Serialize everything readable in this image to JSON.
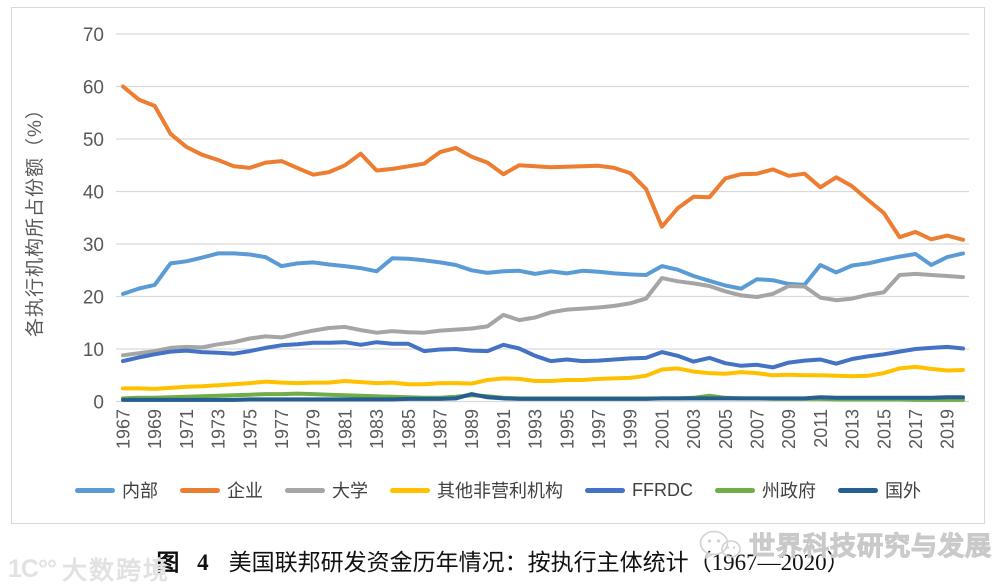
{
  "caption": {
    "prefix": "图 4",
    "text": "美国联邦研发资金历年情况：按执行主体统计（1967—2020）"
  },
  "watermark_left": {
    "logo_text": "1C°°",
    "text": "大数跨境"
  },
  "watermark_right": {
    "text": "世界科技研究与发展"
  },
  "colors": {
    "grid": "#D9D9D9",
    "frame_border": "#D9D9D9",
    "tick_text": "#595959",
    "legend_text": "#404040",
    "watermark": "#E2E2E2"
  },
  "chart_data": {
    "type": "line",
    "title": "",
    "xlabel": "",
    "ylabel": "各执行机构所占份额（%）",
    "ylim": [
      0,
      70
    ],
    "yticks": [
      0,
      10,
      20,
      30,
      40,
      50,
      60,
      70
    ],
    "grid": "horizontal",
    "legend_position": "bottom",
    "x": [
      1967,
      1968,
      1969,
      1970,
      1971,
      1972,
      1973,
      1974,
      1975,
      1976,
      1977,
      1978,
      1979,
      1980,
      1981,
      1982,
      1983,
      1984,
      1985,
      1986,
      1987,
      1988,
      1989,
      1990,
      1991,
      1992,
      1993,
      1994,
      1995,
      1996,
      1997,
      1998,
      1999,
      2000,
      2001,
      2002,
      2003,
      2004,
      2005,
      2006,
      2007,
      2008,
      2009,
      2010,
      2011,
      2012,
      2013,
      2014,
      2015,
      2016,
      2017,
      2018,
      2019,
      2020
    ],
    "xtick_labels": [
      "1967",
      "1969",
      "1971",
      "1973",
      "1975",
      "1977",
      "1979",
      "1981",
      "1983",
      "1985",
      "1987",
      "1989",
      "1991",
      "1993",
      "1995",
      "1997",
      "1999",
      "2001",
      "2003",
      "2005",
      "2007",
      "2009",
      "2011",
      "2013",
      "2015",
      "2017",
      "2019"
    ],
    "series": [
      {
        "name": "内部",
        "color": "#5B9BD5",
        "values": [
          20.5,
          21.5,
          22.2,
          26.3,
          26.7,
          27.4,
          28.2,
          28.2,
          28.0,
          27.5,
          25.8,
          26.3,
          26.5,
          26.1,
          25.8,
          25.4,
          24.8,
          27.3,
          27.2,
          26.9,
          26.5,
          26.0,
          25.0,
          24.5,
          24.8,
          24.9,
          24.3,
          24.8,
          24.4,
          24.9,
          24.7,
          24.4,
          24.2,
          24.1,
          25.8,
          25.1,
          23.9,
          23.0,
          22.1,
          21.5,
          23.3,
          23.1,
          22.4,
          22.2,
          26.0,
          24.6,
          25.9,
          26.3,
          27.0,
          27.6,
          28.1,
          26.0,
          27.5,
          28.2
        ]
      },
      {
        "name": "企业",
        "color": "#ED7D31",
        "values": [
          60.0,
          57.5,
          56.3,
          51.0,
          48.5,
          47.0,
          46.0,
          44.8,
          44.5,
          45.5,
          45.8,
          44.5,
          43.2,
          43.7,
          45.0,
          47.2,
          44.0,
          44.3,
          44.8,
          45.3,
          47.5,
          48.3,
          46.6,
          45.5,
          43.3,
          45.0,
          44.8,
          44.6,
          44.7,
          44.8,
          44.9,
          44.5,
          43.5,
          40.5,
          33.3,
          36.8,
          39.0,
          38.9,
          42.5,
          43.3,
          43.4,
          44.2,
          43.0,
          43.4,
          40.8,
          42.7,
          41.0,
          38.4,
          35.9,
          31.3,
          32.3,
          30.9,
          31.6,
          30.8
        ]
      },
      {
        "name": "大学",
        "color": "#A5A5A5",
        "values": [
          8.8,
          9.2,
          9.6,
          10.2,
          10.4,
          10.3,
          10.9,
          11.3,
          12.0,
          12.4,
          12.2,
          12.9,
          13.5,
          14.0,
          14.2,
          13.6,
          13.1,
          13.4,
          13.2,
          13.1,
          13.5,
          13.7,
          13.9,
          14.3,
          16.5,
          15.5,
          16.0,
          17.0,
          17.5,
          17.7,
          17.9,
          18.2,
          18.7,
          19.6,
          23.5,
          22.9,
          22.5,
          22.0,
          21.0,
          20.2,
          19.9,
          20.5,
          22.0,
          21.9,
          19.8,
          19.3,
          19.6,
          20.3,
          20.8,
          24.1,
          24.3,
          24.1,
          23.9,
          23.7
        ]
      },
      {
        "name": "其他非营利机构",
        "color": "#FFC000",
        "values": [
          2.5,
          2.5,
          2.4,
          2.6,
          2.8,
          2.9,
          3.1,
          3.3,
          3.5,
          3.8,
          3.6,
          3.5,
          3.6,
          3.6,
          3.9,
          3.7,
          3.5,
          3.6,
          3.3,
          3.3,
          3.5,
          3.5,
          3.4,
          4.1,
          4.4,
          4.3,
          3.9,
          3.9,
          4.1,
          4.1,
          4.3,
          4.4,
          4.5,
          4.9,
          6.1,
          6.3,
          5.7,
          5.4,
          5.3,
          5.6,
          5.4,
          5.0,
          5.1,
          5.0,
          5.0,
          4.9,
          4.8,
          4.9,
          5.4,
          6.3,
          6.6,
          6.2,
          5.9,
          6.0
        ]
      },
      {
        "name": "FFRDC",
        "color": "#4472C4",
        "values": [
          7.7,
          8.4,
          9.0,
          9.5,
          9.7,
          9.4,
          9.3,
          9.1,
          9.6,
          10.2,
          10.7,
          10.9,
          11.2,
          11.2,
          11.3,
          10.8,
          11.3,
          11.0,
          11.0,
          9.6,
          9.9,
          10.0,
          9.7,
          9.6,
          10.8,
          10.1,
          8.7,
          7.7,
          8.0,
          7.7,
          7.8,
          8.0,
          8.2,
          8.3,
          9.4,
          8.7,
          7.6,
          8.3,
          7.3,
          6.8,
          7.0,
          6.5,
          7.4,
          7.8,
          8.0,
          7.2,
          8.1,
          8.6,
          9.0,
          9.5,
          10.0,
          10.2,
          10.4,
          10.1
        ]
      },
      {
        "name": "州政府",
        "color": "#70AD47",
        "values": [
          0.6,
          0.7,
          0.7,
          0.8,
          0.9,
          1.0,
          1.1,
          1.2,
          1.3,
          1.4,
          1.4,
          1.5,
          1.4,
          1.3,
          1.2,
          1.1,
          1.0,
          0.9,
          0.8,
          0.7,
          0.7,
          0.9,
          1.2,
          1.0,
          0.7,
          0.6,
          0.6,
          0.6,
          0.6,
          0.6,
          0.6,
          0.6,
          0.6,
          0.6,
          0.6,
          0.6,
          0.7,
          1.1,
          0.7,
          0.6,
          0.6,
          0.5,
          0.5,
          0.5,
          0.5,
          0.4,
          0.4,
          0.4,
          0.4,
          0.4,
          0.3,
          0.3,
          0.3,
          0.3
        ]
      },
      {
        "name": "国外",
        "color": "#255E91",
        "values": [
          0.3,
          0.3,
          0.3,
          0.3,
          0.3,
          0.3,
          0.3,
          0.3,
          0.4,
          0.4,
          0.4,
          0.4,
          0.4,
          0.4,
          0.4,
          0.4,
          0.4,
          0.4,
          0.5,
          0.5,
          0.5,
          0.6,
          1.4,
          0.8,
          0.6,
          0.5,
          0.5,
          0.5,
          0.5,
          0.5,
          0.5,
          0.5,
          0.5,
          0.5,
          0.6,
          0.6,
          0.6,
          0.6,
          0.6,
          0.6,
          0.6,
          0.6,
          0.6,
          0.6,
          0.8,
          0.7,
          0.7,
          0.7,
          0.7,
          0.7,
          0.7,
          0.7,
          0.8,
          0.8
        ]
      }
    ]
  }
}
